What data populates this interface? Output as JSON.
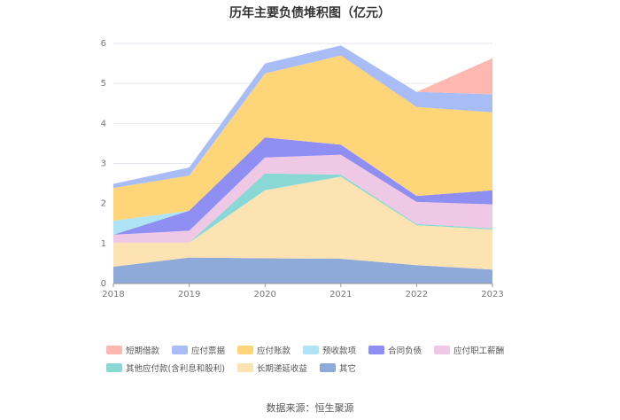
{
  "chart_data": {
    "type": "area",
    "stacked": true,
    "title": "历年主要负债堆积图（亿元）",
    "xlabel": "",
    "ylabel": "",
    "x": [
      "2018",
      "2019",
      "2020",
      "2021",
      "2022",
      "2023"
    ],
    "ylim": [
      0,
      6
    ],
    "yticks": [
      "0",
      "1",
      "2",
      "3",
      "4",
      "5",
      "6"
    ],
    "grid": true,
    "legend_position": "bottom",
    "series": [
      {
        "name": "其它",
        "color": "#8eaad8",
        "values": [
          0.42,
          0.65,
          0.63,
          0.62,
          0.46,
          0.35
        ]
      },
      {
        "name": "长期递延收益",
        "color": "#fde2b2",
        "values": [
          0.6,
          0.37,
          1.7,
          2.05,
          1.0,
          1.0
        ]
      },
      {
        "name": "其他应付款(含利息和股利)",
        "color": "#8ad8d6",
        "values": [
          0.0,
          0.0,
          0.42,
          0.05,
          0.03,
          0.03
        ]
      },
      {
        "name": "应付职工薪酬",
        "color": "#eec8e4",
        "values": [
          0.2,
          0.3,
          0.4,
          0.5,
          0.55,
          0.6
        ]
      },
      {
        "name": "合同负债",
        "color": "#8f8ef3",
        "values": [
          0.0,
          0.5,
          0.5,
          0.25,
          0.15,
          0.35
        ]
      },
      {
        "name": "预收款项",
        "color": "#aee4f6",
        "values": [
          0.35,
          0.0,
          0.0,
          0.0,
          0.0,
          0.0
        ]
      },
      {
        "name": "应付账款",
        "color": "#ffd57a",
        "values": [
          0.82,
          0.88,
          1.6,
          2.23,
          2.22,
          1.95
        ]
      },
      {
        "name": "应付票据",
        "color": "#a8bdf6",
        "values": [
          0.1,
          0.2,
          0.25,
          0.25,
          0.38,
          0.45
        ]
      },
      {
        "name": "短期借款",
        "color": "#fdb8b2",
        "values": [
          0.0,
          0.0,
          0.0,
          0.0,
          0.0,
          0.9
        ]
      }
    ],
    "legend_order": [
      "短期借款",
      "应付票据",
      "应付账款",
      "预收款项",
      "合同负债",
      "应付职工薪酬",
      "其他应付款(含利息和股利)",
      "长期递延收益",
      "其它"
    ]
  },
  "source": "数据来源：恒生聚源"
}
